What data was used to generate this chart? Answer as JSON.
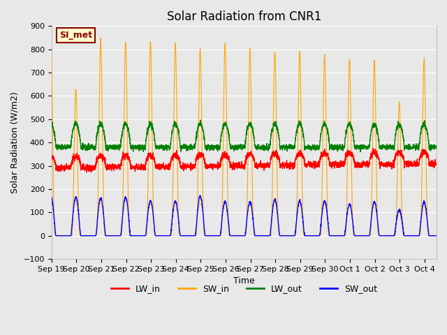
{
  "title": "Solar Radiation from CNR1",
  "xlabel": "Time",
  "ylabel": "Solar Radiation (W/m2)",
  "ylim": [
    -100,
    900
  ],
  "fig_bg": "#e8e8e8",
  "plot_bg": "#e8e8e8",
  "colors": {
    "LW_in": "red",
    "SW_in": "orange",
    "LW_out": "green",
    "SW_out": "blue"
  },
  "annotation_text": "SI_met",
  "annotation_bg": "#ffffcc",
  "annotation_border": "#8b0000",
  "x_tick_labels": [
    "Sep 19",
    "Sep 20",
    "Sep 21",
    "Sep 22",
    "Sep 23",
    "Sep 24",
    "Sep 25",
    "Sep 26",
    "Sep 27",
    "Sep 28",
    "Sep 29",
    "Sep 30",
    "Oct 1",
    "Oct 2",
    "Oct 3",
    "Oct 4"
  ],
  "n_days": 16,
  "SW_in_peaks": [
    840,
    630,
    840,
    830,
    830,
    820,
    800,
    830,
    800,
    790,
    790,
    780,
    760,
    750,
    575,
    760
  ],
  "SW_out_peaks": [
    170,
    165,
    160,
    165,
    150,
    148,
    170,
    145,
    145,
    155,
    150,
    150,
    135,
    145,
    110,
    145
  ],
  "LW_out_night": 380,
  "LW_out_day_amp": 100,
  "LW_in_base": 290,
  "LW_in_day_amp": 50,
  "title_fontsize": 12,
  "label_fontsize": 9,
  "tick_fontsize": 8,
  "legend_fontsize": 9
}
